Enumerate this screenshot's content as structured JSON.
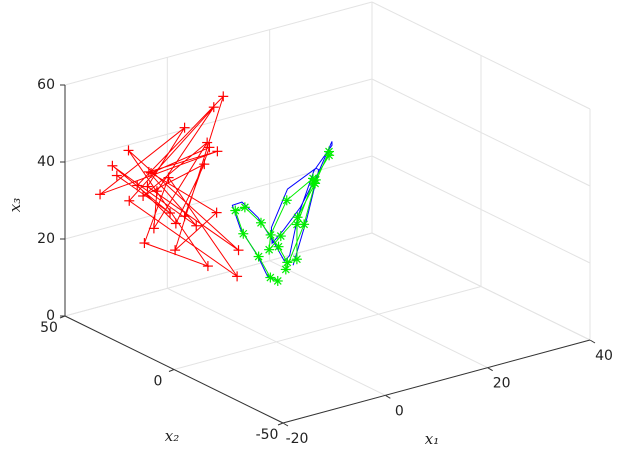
{
  "chart_data": {
    "type": "scatter3d",
    "xlabel": "x₁",
    "ylabel": "x₂",
    "zlabel": "x₃",
    "xlim": [
      -20,
      40
    ],
    "ylim": [
      -50,
      50
    ],
    "zlim": [
      0,
      60
    ],
    "xticks": [
      -20,
      0,
      20,
      40
    ],
    "yticks": [
      -50,
      0,
      50
    ],
    "zticks": [
      0,
      20,
      40,
      60
    ],
    "grid": true,
    "series": [
      {
        "color": "#ff0000",
        "marker": "+",
        "x": [
          -12,
          -8,
          -15,
          -5,
          -10,
          -3,
          -14,
          -6,
          -9,
          -1,
          -11,
          -4,
          -13,
          -7,
          0,
          -10,
          -2,
          -8,
          -12,
          -5,
          -9,
          -3,
          -6,
          -11,
          -1,
          -7,
          -4,
          -10,
          -2,
          -6
        ],
        "y": [
          45,
          30,
          40,
          25,
          35,
          20,
          48,
          28,
          38,
          15,
          42,
          22,
          30,
          33,
          18,
          44,
          24,
          36,
          28,
          20,
          40,
          26,
          32,
          38,
          22,
          30,
          18,
          34,
          26,
          28
        ],
        "z": [
          35,
          28,
          40,
          25,
          38,
          45,
          30,
          50,
          33,
          20,
          42,
          15,
          22,
          36,
          12,
          28,
          55,
          32,
          26,
          48,
          30,
          40,
          24,
          34,
          58,
          18,
          30,
          38,
          44,
          27
        ]
      },
      {
        "color": "#0000ff",
        "marker": "none",
        "x": [
          -2,
          -6,
          -10,
          -13,
          -12,
          -8,
          -4,
          -1,
          2,
          6,
          11,
          15,
          16,
          13,
          9,
          6,
          4,
          3,
          5,
          9,
          12,
          10,
          6,
          2
        ],
        "y": [
          -4,
          -10,
          -15,
          -14,
          -8,
          -3,
          -1,
          -2,
          1,
          8,
          16,
          18,
          12,
          5,
          2,
          3,
          6,
          9,
          14,
          16,
          10,
          4,
          0,
          -3
        ],
        "z": [
          18,
          22,
          30,
          38,
          42,
          40,
          34,
          26,
          20,
          18,
          24,
          34,
          42,
          46,
          40,
          32,
          26,
          22,
          24,
          32,
          38,
          40,
          30,
          20
        ]
      },
      {
        "color": "#00ee00",
        "marker": "*",
        "x": [
          -1,
          -5,
          -9,
          -12,
          -11,
          -7,
          -3,
          0,
          3,
          7,
          10,
          14,
          15,
          12,
          8,
          5,
          3,
          2,
          4,
          8,
          11,
          9,
          5,
          1
        ],
        "y": [
          -3,
          -9,
          -13,
          -13,
          -7,
          -2,
          0,
          -1,
          2,
          7,
          14,
          16,
          11,
          4,
          1,
          2,
          5,
          8,
          12,
          14,
          9,
          3,
          -1,
          -2
        ],
        "z": [
          17,
          21,
          29,
          36,
          40,
          38,
          32,
          25,
          19,
          17,
          23,
          32,
          40,
          44,
          38,
          30,
          25,
          21,
          23,
          30,
          36,
          38,
          29,
          19
        ]
      }
    ]
  }
}
